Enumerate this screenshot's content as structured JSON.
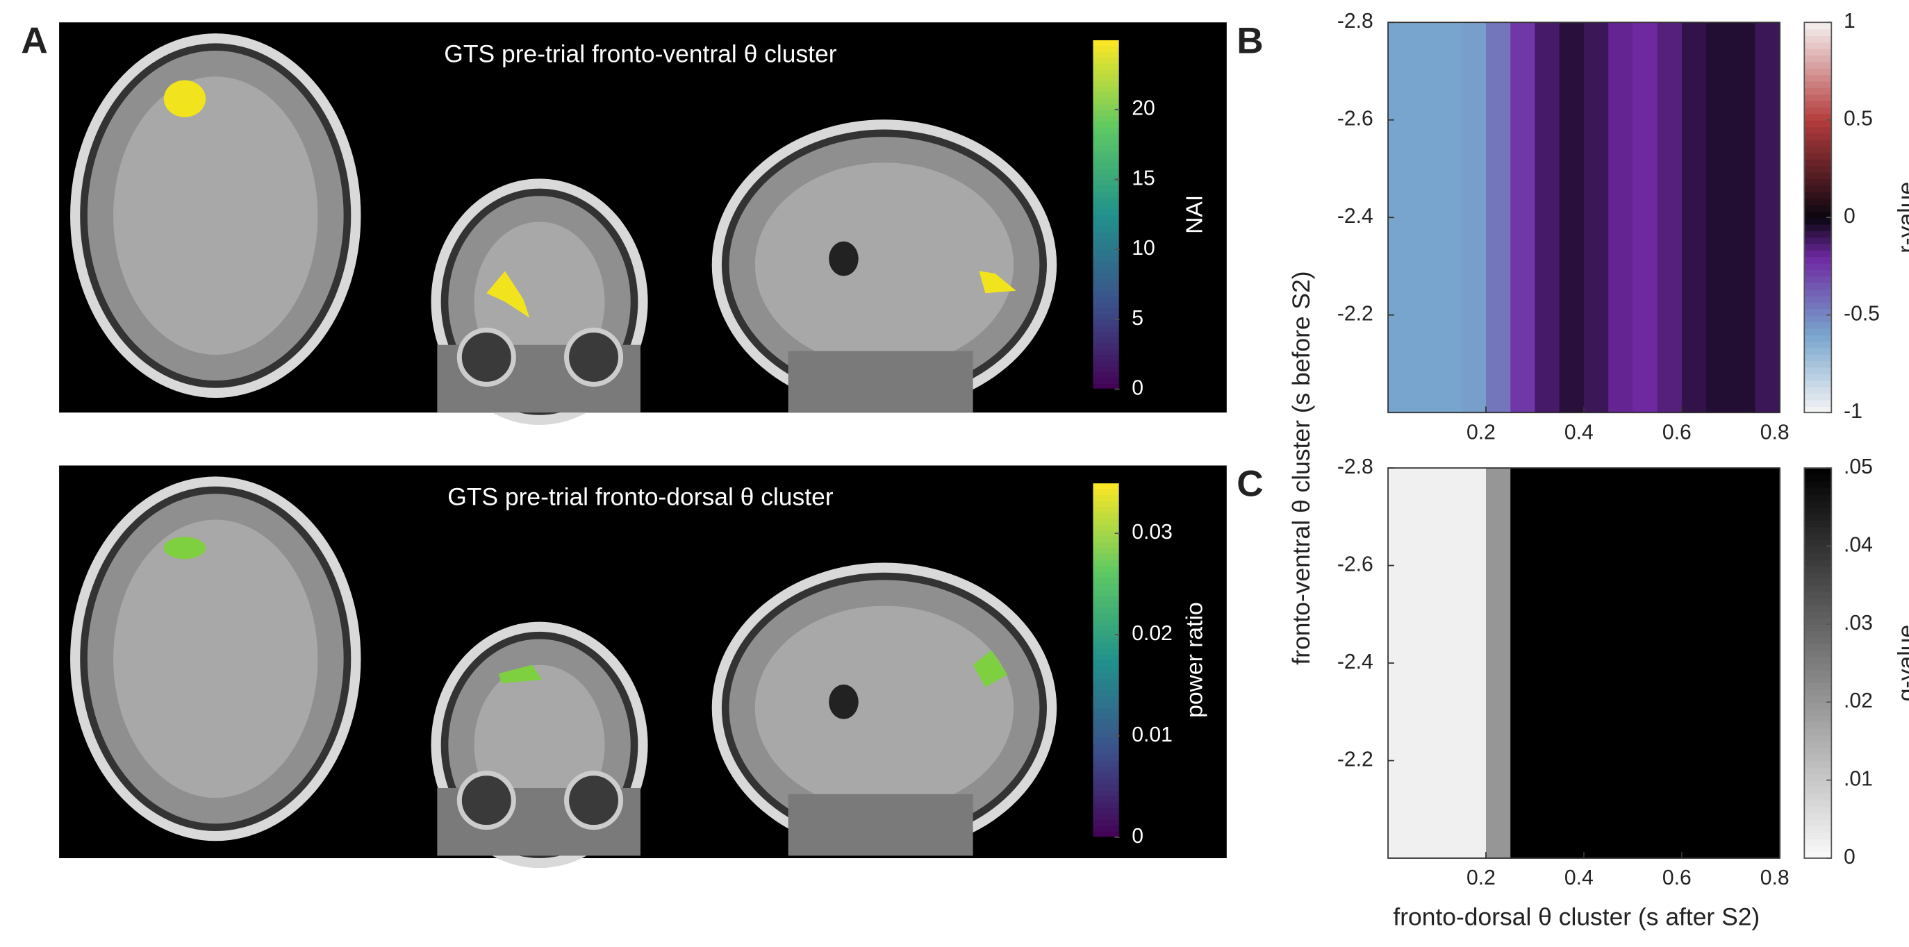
{
  "panel_labels": [
    "A",
    "B",
    "C"
  ],
  "chart_data": [
    {
      "type": "brain-map",
      "title": "GTS pre-trial fronto-ventral θ cluster",
      "blob_color": "#f2e41c",
      "colorbar": {
        "label": "NAI",
        "lim": [
          0,
          25
        ],
        "ticks": [
          0,
          5,
          10,
          15,
          20
        ]
      }
    },
    {
      "type": "brain-map",
      "title": "GTS pre-trial fronto-dorsal θ cluster",
      "blob_color": "#7fd040",
      "colorbar": {
        "label": "power ratio",
        "lim": [
          0,
          0.035
        ],
        "ticks": [
          0,
          0.01,
          0.02,
          0.03
        ]
      }
    },
    {
      "type": "heatmap",
      "ylabel": "fronto-ventral θ cluster (s before S2)",
      "x": [
        0.025,
        0.075,
        0.125,
        0.175,
        0.225,
        0.275,
        0.325,
        0.375,
        0.425,
        0.475,
        0.525,
        0.575,
        0.625,
        0.675,
        0.725,
        0.775
      ],
      "values": [
        -0.6,
        -0.6,
        -0.6,
        -0.58,
        -0.45,
        -0.25,
        -0.12,
        -0.06,
        -0.1,
        -0.18,
        -0.2,
        -0.15,
        -0.08,
        -0.05,
        -0.05,
        -0.1
      ],
      "xlim": [
        0,
        0.8
      ],
      "xticks": [
        0.2,
        0.4,
        0.6,
        0.8
      ],
      "ylim": [
        -2.8,
        -2.0
      ],
      "y_reversed": true,
      "yticks": [
        -2.8,
        -2.6,
        -2.4,
        -2.2
      ],
      "colorbar": {
        "label": "r-value",
        "lim": [
          -1,
          1
        ],
        "ticks": [
          -1,
          -0.5,
          0,
          0.5,
          1
        ]
      }
    },
    {
      "type": "heatmap",
      "xlabel": "fronto-dorsal θ cluster (s after S2)",
      "x": [
        0.025,
        0.075,
        0.125,
        0.175,
        0.225,
        0.275,
        0.325,
        0.375,
        0.425,
        0.475,
        0.525,
        0.575,
        0.625,
        0.675,
        0.725,
        0.775
      ],
      "values": [
        0.002,
        0.002,
        0.002,
        0.002,
        0.02,
        0.05,
        0.05,
        0.05,
        0.05,
        0.05,
        0.05,
        0.05,
        0.05,
        0.05,
        0.05,
        0.05
      ],
      "xlim": [
        0,
        0.8
      ],
      "xticks": [
        0.2,
        0.4,
        0.6,
        0.8
      ],
      "ylim": [
        -2.8,
        -2.0
      ],
      "y_reversed": true,
      "yticks": [
        -2.8,
        -2.6,
        -2.4,
        -2.2
      ],
      "colorbar": {
        "label": "q-value",
        "lim": [
          0,
          0.05
        ],
        "ticks": [
          0,
          {
            "value": 0.01,
            "label": ".01"
          },
          {
            "value": 0.02,
            "label": ".02"
          },
          {
            "value": 0.03,
            "label": ".03"
          },
          {
            "value": 0.04,
            "label": ".04"
          },
          {
            "value": 0.05,
            "label": ".05"
          }
        ]
      }
    }
  ]
}
